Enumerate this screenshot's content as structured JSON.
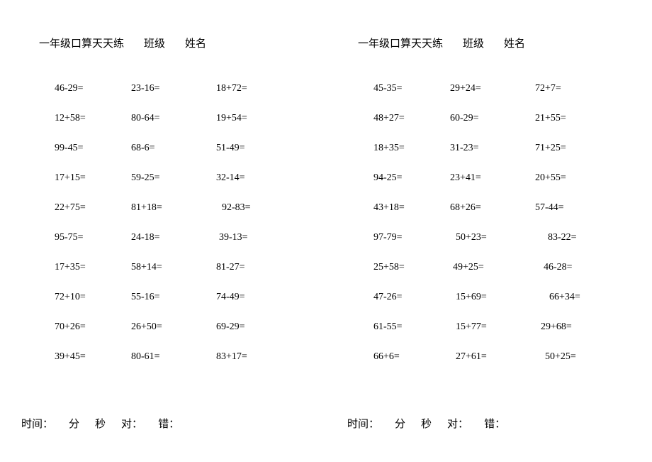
{
  "header": {
    "title": "一年级口算天天练",
    "class_label": "班级",
    "name_label": "姓名"
  },
  "footer": {
    "time_label": "时间：",
    "min_unit": "分",
    "sec_unit": "秒",
    "correct_label": "对：",
    "wrong_label": "错："
  },
  "left": {
    "rows": [
      [
        "46-29=",
        "23-16=",
        "18+72="
      ],
      [
        "12+58=",
        "80-64=",
        "19+54="
      ],
      [
        "99-45=",
        "68-6=",
        "51-49="
      ],
      [
        "17+15=",
        "59-25=",
        "32-14="
      ],
      [
        "22+75=",
        "81+18=",
        "92-83="
      ],
      [
        "95-75=",
        "24-18=",
        "39-13="
      ],
      [
        "17+35=",
        "58+14=",
        "81-27="
      ],
      [
        "72+10=",
        "55-16=",
        "74-49="
      ],
      [
        "70+26=",
        "26+50=",
        "69-29="
      ],
      [
        "39+45=",
        "80-61=",
        "83+17="
      ]
    ]
  },
  "right": {
    "rows": [
      [
        "45-35=",
        "29+24=",
        "72+7="
      ],
      [
        "48+27=",
        "60-29=",
        "21+55="
      ],
      [
        "18+35=",
        "31-23=",
        "71+25="
      ],
      [
        "94-25=",
        "23+41=",
        "20+55="
      ],
      [
        "43+18=",
        "68+26=",
        "57-44="
      ],
      [
        "97-79=",
        "50+23=",
        "83-22="
      ],
      [
        "25+58=",
        "49+25=",
        "46-28="
      ],
      [
        "47-26=",
        "15+69=",
        "66+34="
      ],
      [
        "61-55=",
        "15+77=",
        "29+68="
      ],
      [
        "66+6=",
        "27+61=",
        "50+25="
      ]
    ]
  }
}
